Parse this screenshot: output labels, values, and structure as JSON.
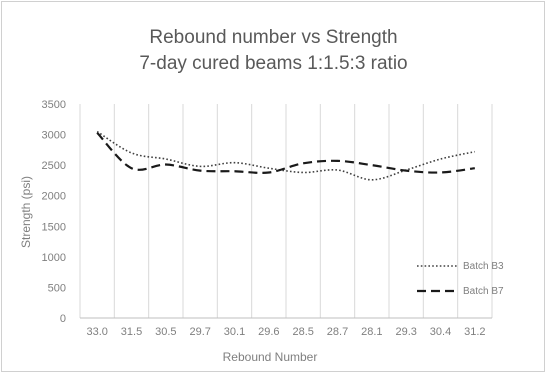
{
  "chart_data": {
    "type": "line",
    "title": "Rebound number vs Strength",
    "subtitle": "7-day cured beams 1:1.5:3 ratio",
    "xlabel": "Rebound Number",
    "ylabel": "Strength (psi)",
    "categories": [
      "33.0",
      "31.5",
      "30.5",
      "29.7",
      "30.1",
      "29.6",
      "28.5",
      "28.7",
      "28.1",
      "29.3",
      "30.4",
      "31.2"
    ],
    "ylim": [
      0,
      3500
    ],
    "yticks": [
      0,
      500,
      1000,
      1500,
      2000,
      2500,
      3000,
      3500
    ],
    "grid": "vertical",
    "legend_position": "right",
    "series": [
      {
        "name": "Batch B3",
        "style": "dotted",
        "color": "#404040",
        "values": [
          3050,
          2700,
          2600,
          2480,
          2540,
          2450,
          2380,
          2420,
          2260,
          2420,
          2600,
          2720
        ]
      },
      {
        "name": "Batch B7",
        "style": "dashed",
        "color": "#1a1a1a",
        "values": [
          3030,
          2450,
          2510,
          2410,
          2400,
          2380,
          2530,
          2570,
          2500,
          2410,
          2380,
          2450
        ]
      }
    ]
  }
}
